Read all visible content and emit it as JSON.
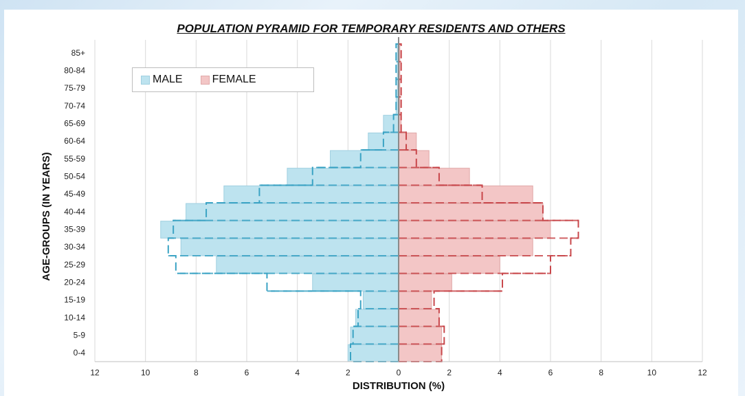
{
  "chart_data": {
    "type": "bar",
    "orientation": "horizontal",
    "title": "POPULATION PYRAMID FOR TEMPORARY RESIDENTS AND OTHERS",
    "xlabel": "DISTRIBUTION (%)",
    "ylabel": "AGE-GROUPS (IN YEARS)",
    "categories": [
      "0-4",
      "5-9",
      "10-14",
      "15-19",
      "20-24",
      "25-29",
      "30-34",
      "35-39",
      "40-44",
      "45-49",
      "50-54",
      "55-59",
      "60-64",
      "65-69",
      "70-74",
      "75-79",
      "80-84",
      "85+"
    ],
    "xlim": [
      -12,
      12
    ],
    "x_tick_labels": [
      "12",
      "10",
      "8",
      "6",
      "4",
      "2",
      "0",
      "2",
      "4",
      "6",
      "8",
      "10",
      "12"
    ],
    "legend": [
      "MALE",
      "FEMALE"
    ],
    "legend_position": "top-left",
    "grid": "vertical",
    "series": [
      {
        "name": "MALE",
        "style": "filled",
        "color": "#bde3ef",
        "values": [
          2.0,
          1.9,
          1.7,
          1.4,
          3.4,
          7.2,
          8.6,
          9.4,
          8.4,
          6.9,
          4.4,
          2.7,
          1.2,
          0.6,
          0.1,
          0.05,
          0.05,
          0.05
        ]
      },
      {
        "name": "FEMALE",
        "style": "filled",
        "color": "#f3c6c6",
        "values": [
          1.7,
          1.7,
          1.6,
          1.3,
          2.1,
          4.0,
          5.3,
          6.0,
          5.7,
          5.3,
          2.8,
          1.2,
          0.7,
          0.1,
          0.05,
          0.05,
          0.05,
          0.05
        ]
      },
      {
        "style": "dashed-outline",
        "side": "male",
        "color": "#3aa3c4",
        "values": [
          1.9,
          1.8,
          1.6,
          1.5,
          5.2,
          8.8,
          9.1,
          8.9,
          7.6,
          5.5,
          3.4,
          1.5,
          0.6,
          0.2,
          0.1,
          0.1,
          0.1,
          0.1
        ]
      },
      {
        "style": "dashed-outline",
        "side": "female",
        "color": "#c8474b",
        "values": [
          1.7,
          1.8,
          1.6,
          1.4,
          4.1,
          6.0,
          6.8,
          7.1,
          5.7,
          3.3,
          1.6,
          0.7,
          0.3,
          0.1,
          0.1,
          0.1,
          0.1,
          0.1
        ]
      }
    ]
  },
  "colors": {
    "male_fill": "#bde3ef",
    "male_edge": "#9fcfe0",
    "female_fill": "#f3c6c6",
    "female_edge": "#e0a8a8",
    "male_dash": "#3aa3c4",
    "female_dash": "#c8474b",
    "center_line": "#8a8a8a",
    "grid": "#d9d9d9"
  }
}
